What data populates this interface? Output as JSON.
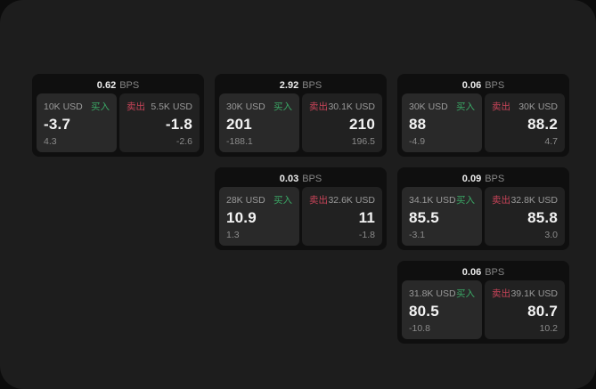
{
  "labels": {
    "buy": "买入",
    "sell": "卖出",
    "bps_unit": "BPS"
  },
  "colors": {
    "buy_green": "#3aa765",
    "sell_red": "#c84459",
    "window_background": "#1d1d1d",
    "card_background": "#0f0f0f",
    "buy_panel_background": "#292929",
    "sell_panel_background": "#212121",
    "main_value_text": "#f3f3f3",
    "muted_text": "#8b8b8b"
  },
  "cards": [
    {
      "bps": "0.62",
      "buy": {
        "amount": "10K USD",
        "price": "-3.7",
        "sub": "4.3"
      },
      "sell": {
        "amount": "5.5K USD",
        "price": "-1.8",
        "sub": "-2.6"
      }
    },
    {
      "bps": "2.92",
      "buy": {
        "amount": "30K USD",
        "price": "201",
        "sub": "-188.1"
      },
      "sell": {
        "amount": "30.1K USD",
        "price": "210",
        "sub": "196.5"
      }
    },
    {
      "bps": "0.06",
      "buy": {
        "amount": "30K USD",
        "price": "88",
        "sub": "-4.9"
      },
      "sell": {
        "amount": "30K USD",
        "price": "88.2",
        "sub": "4.7"
      }
    },
    {
      "bps": "0.03",
      "buy": {
        "amount": "28K USD",
        "price": "10.9",
        "sub": "1.3"
      },
      "sell": {
        "amount": "32.6K USD",
        "price": "11",
        "sub": "-1.8"
      }
    },
    {
      "bps": "0.09",
      "buy": {
        "amount": "34.1K USD",
        "price": "85.5",
        "sub": "-3.1"
      },
      "sell": {
        "amount": "32.8K USD",
        "price": "85.8",
        "sub": "3.0"
      }
    },
    {
      "bps": "0.06",
      "buy": {
        "amount": "31.8K USD",
        "price": "80.5",
        "sub": "-10.8"
      },
      "sell": {
        "amount": "39.1K USD",
        "price": "80.7",
        "sub": "10.2"
      }
    }
  ]
}
